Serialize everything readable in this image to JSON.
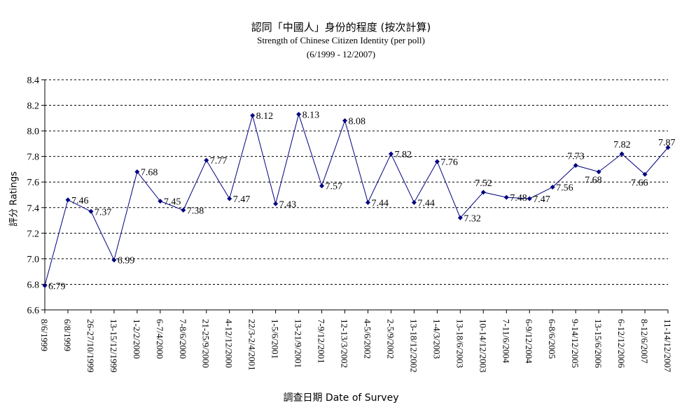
{
  "chart_data": {
    "type": "line",
    "title": "認同「中國人」身份的程度 (按次計算)",
    "subtitle": "Strength of Chinese Citizen Identity (per poll)",
    "subtitle2": "(6/1999 - 12/2007)",
    "xlabel": "調查日期 Date of Survey",
    "ylabel": "評分 Ratings",
    "ylim": [
      6.6,
      8.4
    ],
    "yticks": [
      "6.6",
      "6.8",
      "7.0",
      "7.2",
      "7.4",
      "7.6",
      "7.8",
      "8.0",
      "8.2",
      "8.4"
    ],
    "grid": true,
    "series_color": "#000080",
    "points": [
      {
        "date": "8/6/1999",
        "value": 6.79,
        "label": "6.79"
      },
      {
        "date": "6/8/1999",
        "value": 7.46,
        "label": "7.46"
      },
      {
        "date": "26-27/10/1999",
        "value": 7.37,
        "label": "7.37"
      },
      {
        "date": "13-15/12/1999",
        "value": 6.99,
        "label": "6.99"
      },
      {
        "date": "1-2/2/2000",
        "value": 7.68,
        "label": "7.68"
      },
      {
        "date": "6-7/4/2000",
        "value": 7.45,
        "label": "7.45"
      },
      {
        "date": "7-8/6/2000",
        "value": 7.38,
        "label": "7.38"
      },
      {
        "date": "21-25/9/2000",
        "value": 7.77,
        "label": "7.77"
      },
      {
        "date": "4-12/12/2000",
        "value": 7.47,
        "label": "7.47"
      },
      {
        "date": "22/3-2/4/2001",
        "value": 8.12,
        "label": "8.12"
      },
      {
        "date": "1-5/6/2001",
        "value": 7.43,
        "label": "7.43"
      },
      {
        "date": "13-21/9/2001",
        "value": 8.13,
        "label": "8.13"
      },
      {
        "date": "7-9/12/2001",
        "value": 7.57,
        "label": "7.57"
      },
      {
        "date": "12-13/3/2002",
        "value": 8.08,
        "label": "8.08"
      },
      {
        "date": "4-5/6/2002",
        "value": 7.44,
        "label": "7.44"
      },
      {
        "date": "2-5/9/2002",
        "value": 7.82,
        "label": "7.82"
      },
      {
        "date": "13-18/12/2002",
        "value": 7.44,
        "label": "7.44"
      },
      {
        "date": "1-4/3/2003",
        "value": 7.76,
        "label": "7.76"
      },
      {
        "date": "13-18/6/2003",
        "value": 7.32,
        "label": "7.32"
      },
      {
        "date": "10-14/12/2003",
        "value": 7.52,
        "label": "7.52"
      },
      {
        "date": "7-11/6/2004",
        "value": 7.48,
        "label": "7.48"
      },
      {
        "date": "6-9/12/2004",
        "value": 7.47,
        "label": "7.47"
      },
      {
        "date": "6-8/6/2005",
        "value": 7.56,
        "label": "7.56"
      },
      {
        "date": "9-14/12/2005",
        "value": 7.73,
        "label": "7.73"
      },
      {
        "date": "13-15/6/2006",
        "value": 7.68,
        "label": "7.68"
      },
      {
        "date": "6-12/12/2006",
        "value": 7.82,
        "label": "7.82"
      },
      {
        "date": "8-12/6/2007",
        "value": 7.66,
        "label": "7.66"
      },
      {
        "date": "11-14/12/2007",
        "value": 7.87,
        "label": "7.87"
      }
    ]
  }
}
